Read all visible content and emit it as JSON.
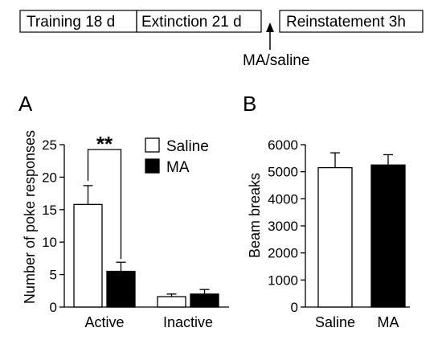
{
  "timeline": {
    "stages": [
      "Training 18 d",
      "Extinction 21 d",
      "Reinstatement 3h"
    ],
    "injection_label": "MA/saline"
  },
  "panels": {
    "a": {
      "letter": "A"
    },
    "b": {
      "letter": "B"
    }
  },
  "chart_data": [
    {
      "type": "bar",
      "panel": "A",
      "ylabel": "Number of poke responses",
      "xlabel": "",
      "categories": [
        "Active",
        "Inactive"
      ],
      "ylim": [
        0,
        25
      ],
      "yticks": [
        0,
        5,
        10,
        15,
        20,
        25
      ],
      "series": [
        {
          "name": "Saline",
          "values": [
            15.8,
            1.6
          ],
          "errors": [
            2.9,
            0.4
          ],
          "color": "#ffffff"
        },
        {
          "name": "MA",
          "values": [
            5.5,
            2.0
          ],
          "errors": [
            1.4,
            0.7
          ],
          "color": "#000000"
        }
      ],
      "legend": "top-right",
      "significance": {
        "label": "**",
        "between": "Saline vs MA",
        "category": "Active"
      }
    },
    {
      "type": "bar",
      "panel": "B",
      "ylabel": "Beam breaks",
      "xlabel": "",
      "categories": [
        "Saline",
        "MA"
      ],
      "ylim": [
        0,
        6000
      ],
      "yticks": [
        0,
        1000,
        2000,
        3000,
        4000,
        5000,
        6000
      ],
      "values": [
        5150,
        5250
      ],
      "errors": [
        550,
        380
      ],
      "colors": [
        "#ffffff",
        "#000000"
      ]
    }
  ]
}
